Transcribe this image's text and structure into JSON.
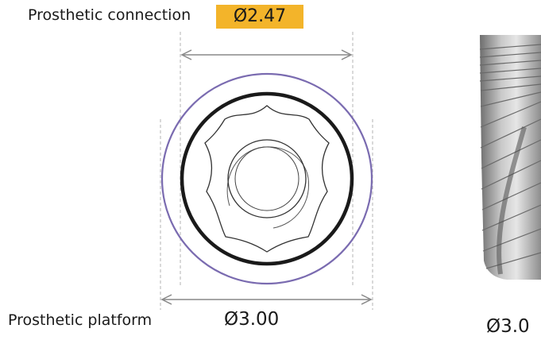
{
  "labels": {
    "prosthetic_connection": "Prosthetic connection",
    "connection_diameter": "Ø2.47",
    "prosthetic_platform": "Prosthetic platform",
    "platform_diameter": "Ø3.00",
    "implant_diameter": "Ø3.0"
  },
  "colors": {
    "badge": "#f3b42a",
    "platform_ring": "#7a6bb0",
    "connection_ring": "#1a1a1a",
    "dimension_line": "#888888",
    "implant_body": "#a9a9a9"
  }
}
